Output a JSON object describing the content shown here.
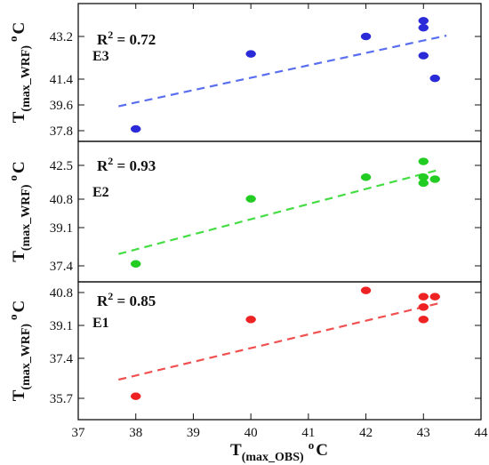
{
  "chart_data": [
    {
      "type": "scatter",
      "panel": "E3",
      "label": "E3",
      "r2_prefix": "R",
      "r2_sup": "2",
      "r2_value": "= 0.72",
      "ylabel_main": "T",
      "ylabel_sub": "(max_WRF)",
      "ylabel_unit": "o",
      "ylabel_end": "C",
      "color": "#2a2ad8",
      "fit_color": "#5a6ef0",
      "yticks": [
        "37.8",
        "39.6",
        "41.4",
        "43.2"
      ],
      "ylim": [
        37.5,
        44.4
      ],
      "x": [
        38,
        40,
        42,
        43,
        43,
        43,
        43.2
      ],
      "y": [
        37.9,
        42.2,
        43.2,
        44.1,
        43.7,
        42.1,
        40.8
      ],
      "fit_x": [
        37.7,
        43.4
      ],
      "fit_y": [
        39.2,
        43.25
      ]
    },
    {
      "type": "scatter",
      "panel": "E2",
      "label": "E2",
      "r2_prefix": "R",
      "r2_sup": "2",
      "r2_value": "= 0.93",
      "ylabel_main": "T",
      "ylabel_sub": "(max_WRF)",
      "ylabel_unit": "o",
      "ylabel_end": "C",
      "color": "#22cc22",
      "fit_color": "#44dd44",
      "yticks": [
        "37.4",
        "39.1",
        "40.8",
        "42.5"
      ],
      "ylim": [
        37.0,
        43.3
      ],
      "x": [
        38,
        40,
        42,
        43,
        43,
        43,
        43.2
      ],
      "y": [
        37.5,
        40.8,
        41.9,
        42.7,
        41.9,
        41.6,
        41.8
      ],
      "fit_x": [
        37.7,
        43.3
      ],
      "fit_y": [
        38.0,
        42.3
      ]
    },
    {
      "type": "scatter",
      "panel": "E1",
      "label": "E1",
      "r2_prefix": "R",
      "r2_sup": "2",
      "r2_value": "= 0.85",
      "ylabel_main": "T",
      "ylabel_sub": "(max_WRF)",
      "ylabel_unit": "o",
      "ylabel_end": "C",
      "color": "#ee2222",
      "fit_color": "#f05050",
      "yticks": [
        "35.7",
        "37.4",
        "39.1",
        "40.8"
      ],
      "ylim": [
        35.0,
        41.1
      ],
      "x": [
        38,
        40,
        42,
        43,
        43,
        43,
        43.2
      ],
      "y": [
        35.8,
        39.5,
        40.9,
        40.6,
        40.1,
        39.5,
        40.6
      ],
      "fit_x": [
        37.7,
        43.3
      ],
      "fit_y": [
        36.6,
        40.3
      ]
    }
  ],
  "xaxis": {
    "ticks": [
      "37",
      "38",
      "39",
      "40",
      "41",
      "42",
      "43",
      "44"
    ],
    "xlim": [
      37,
      44
    ],
    "label_main": "T",
    "label_sub": "(max_OBS)",
    "label_unit": "o",
    "label_end": "C"
  }
}
